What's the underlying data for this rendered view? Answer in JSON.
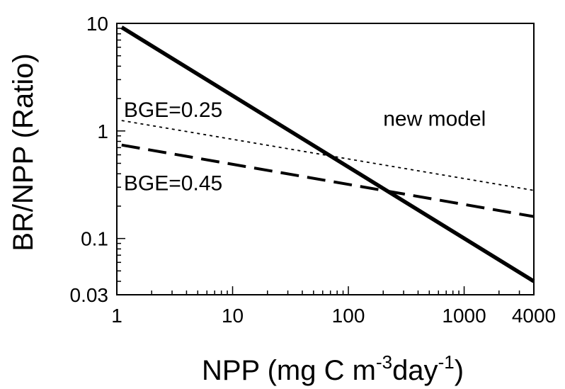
{
  "chart_data": {
    "type": "line",
    "xlabel": {
      "main": "NPP (mg C m",
      "sup1": "-3",
      "mid": "day",
      "sup2": "-1",
      "end": ")"
    },
    "ylabel": "BR/NPP (Ratio)",
    "xscale": "log",
    "yscale": "log",
    "xlim": [
      1,
      4000
    ],
    "ylim": [
      0.03,
      10
    ],
    "xticks": [
      1,
      10,
      100,
      1000,
      4000
    ],
    "xtick_labels": [
      "1",
      "10",
      "100",
      "1000",
      "4000"
    ],
    "yticks": [
      0.03,
      0.1,
      1,
      10
    ],
    "ytick_labels": [
      "0.03",
      "0.1",
      "1",
      "10"
    ],
    "grid": false,
    "series": [
      {
        "name": "new model",
        "style": "solid-thick",
        "color": "#000000",
        "x": [
          1.1,
          4000
        ],
        "y": [
          9.2,
          0.04
        ]
      },
      {
        "name": "BGE=0.25",
        "style": "dotted",
        "color": "#000000",
        "x": [
          1.1,
          4000
        ],
        "y": [
          1.25,
          0.28
        ]
      },
      {
        "name": "BGE=0.45",
        "style": "dashed",
        "color": "#000000",
        "x": [
          1.1,
          4000
        ],
        "y": [
          0.74,
          0.16
        ]
      }
    ],
    "annotations": [
      {
        "text": "new model",
        "x": 200,
        "y": 1.12
      },
      {
        "text": "BGE=0.25",
        "x": 1.15,
        "y": 1.35
      },
      {
        "text": "BGE=0.45",
        "x": 1.15,
        "y": 0.28
      }
    ]
  }
}
